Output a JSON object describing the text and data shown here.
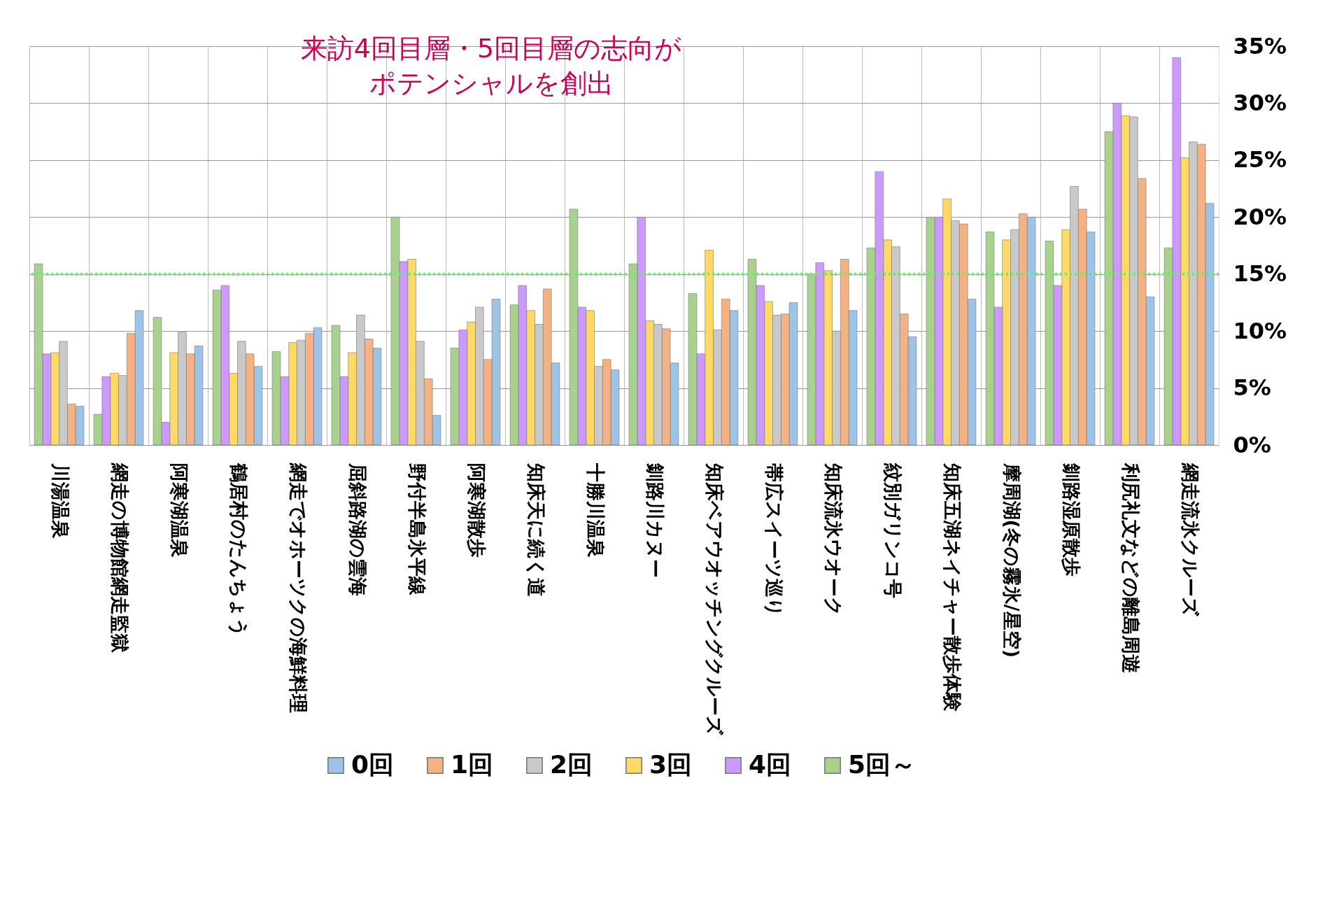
{
  "chart_data": {
    "type": "bar",
    "categories": [
      "川湯温泉",
      "網走の博物館網走監獄",
      "阿寒湖温泉",
      "鶴居村のたんちょう",
      "網走でオホーツクの海鮮料理",
      "屈斜路湖の雲海",
      "野付半島氷平線",
      "阿寒湖散歩",
      "知床天に続く道",
      "十勝川温泉",
      "釧路川カヌー",
      "知床ベアウオッチングクルーズ",
      "帯広スイーツ巡り",
      "知床流氷ウオーク",
      "紋別ガリンコ号",
      "知床五湖ネイチャー散歩体験",
      "摩周湖(冬の霧氷/星空)",
      "釧路湿原散歩",
      "利尻礼文などの離島周遊",
      "網走流氷クルーズ"
    ],
    "series": [
      {
        "name": "0回",
        "color": "#9dc3e6",
        "values": [
          3.4,
          11.8,
          8.7,
          6.9,
          10.3,
          8.5,
          2.6,
          12.8,
          7.2,
          6.6,
          7.2,
          11.8,
          12.5,
          11.8,
          9.5,
          12.8,
          20.0,
          18.7,
          13.0,
          21.2
        ]
      },
      {
        "name": "1回",
        "color": "#f4b183",
        "values": [
          3.6,
          9.8,
          8.0,
          8.0,
          9.8,
          9.3,
          5.8,
          7.5,
          13.7,
          7.5,
          10.2,
          12.8,
          11.5,
          16.3,
          11.5,
          19.4,
          20.3,
          20.7,
          23.4,
          26.4
        ]
      },
      {
        "name": "2回",
        "color": "#c9c9c9",
        "values": [
          9.1,
          6.1,
          9.9,
          9.1,
          9.2,
          11.4,
          9.1,
          12.1,
          10.6,
          6.9,
          10.6,
          10.1,
          11.4,
          10.0,
          17.4,
          19.7,
          18.9,
          22.7,
          28.8,
          26.6
        ]
      },
      {
        "name": "3回",
        "color": "#ffd966",
        "values": [
          8.1,
          6.3,
          8.1,
          6.3,
          9.0,
          8.1,
          16.3,
          10.8,
          11.8,
          11.8,
          10.9,
          17.1,
          12.6,
          15.3,
          18.0,
          21.6,
          18.0,
          18.9,
          28.9,
          25.2
        ]
      },
      {
        "name": "4回",
        "color": "#cc99ff",
        "values": [
          8.0,
          6.0,
          2.0,
          14.0,
          6.0,
          6.0,
          16.1,
          10.1,
          14.0,
          12.1,
          20.0,
          8.0,
          14.0,
          16.0,
          24.0,
          20.0,
          12.1,
          14.0,
          30.0,
          34.0
        ]
      },
      {
        "name": "5回～",
        "color": "#a9d18e",
        "values": [
          15.9,
          2.7,
          11.2,
          13.6,
          8.2,
          10.5,
          20.0,
          8.5,
          12.3,
          20.7,
          15.9,
          13.3,
          16.3,
          15.0,
          17.3,
          20.0,
          18.7,
          17.9,
          27.5,
          17.3
        ]
      }
    ],
    "ylim": [
      0,
      35
    ],
    "yticks": [
      {
        "value": 0,
        "label": "0%"
      },
      {
        "value": 5,
        "label": "5%"
      },
      {
        "value": 10,
        "label": "10%"
      },
      {
        "value": 15,
        "label": "15%"
      },
      {
        "value": 20,
        "label": "20%"
      },
      {
        "value": 25,
        "label": "25%"
      },
      {
        "value": 30,
        "label": "30%"
      },
      {
        "value": 35,
        "label": "35%"
      }
    ],
    "ref_lines": [
      {
        "axis": "y",
        "value": 15,
        "color": "#66ee66",
        "line_style": "dotted"
      }
    ],
    "annotations": [
      "来訪4回目層・5回目層の志向が",
      "ポテンシャルを創出"
    ],
    "grid": true,
    "legend": "bottom"
  }
}
